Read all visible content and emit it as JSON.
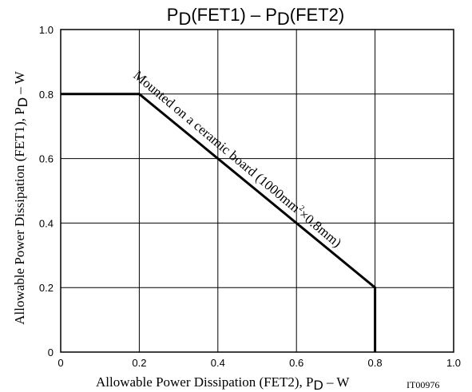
{
  "chart_data": {
    "type": "line",
    "title": {
      "main": "P",
      "sub1": "D",
      "mid": "(FET1)  –  P",
      "sub2": "D",
      "tail": "(FET2)"
    },
    "xlabel": {
      "main": "Allowable Power Dissipation (FET2), P",
      "sub": "D",
      "tail": "  –  W"
    },
    "ylabel": {
      "main": "Allowable Power Dissipation (FET1), P",
      "sub": "D",
      "tail": "  –  W"
    },
    "figure_id": "IT00976",
    "xlim": [
      0,
      1.0
    ],
    "ylim": [
      0,
      1.0
    ],
    "x_ticks": [
      {
        "value": 0,
        "label": "0"
      },
      {
        "value": 0.2,
        "label": "0.2"
      },
      {
        "value": 0.4,
        "label": "0.4"
      },
      {
        "value": 0.6,
        "label": "0.6"
      },
      {
        "value": 0.8,
        "label": "0.8"
      },
      {
        "value": 1.0,
        "label": "1.0"
      }
    ],
    "y_ticks": [
      {
        "value": 0,
        "label": "0"
      },
      {
        "value": 0.2,
        "label": "0.2"
      },
      {
        "value": 0.4,
        "label": "0.4"
      },
      {
        "value": 0.6,
        "label": "0.6"
      },
      {
        "value": 0.8,
        "label": "0.8"
      },
      {
        "value": 1.0,
        "label": "1.0"
      }
    ],
    "grid": true,
    "series": [
      {
        "x": [
          0,
          0.2,
          0.8,
          0.8
        ],
        "y": [
          0.8,
          0.8,
          0.2,
          0
        ],
        "color": "#000000"
      }
    ],
    "annotation": {
      "pre": "Mounted on a ceramic board (1000mm",
      "sup": "2",
      "post": "×0.8mm)"
    }
  }
}
